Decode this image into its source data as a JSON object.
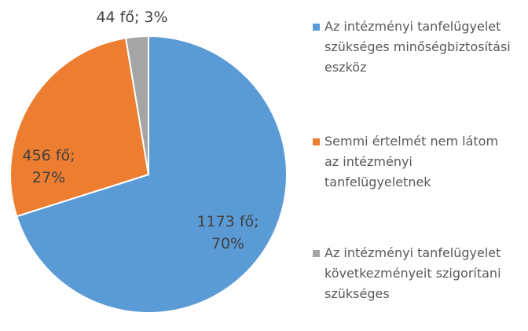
{
  "chart_data": {
    "type": "pie",
    "categories": [
      "Az intézményi tanfelügyelet szükséges minőségbiztosítási eszköz",
      "Semmi értelmét nem látom az intézményi tanfelügyeletnek",
      "Az intézményi tanfelügyelet következményeit szigorítani szükséges"
    ],
    "values": [
      1173,
      456,
      44
    ],
    "value_labels": [
      "1173 fő; 70%",
      "456 fő; 27%",
      "44 fő; 3%"
    ],
    "colors": [
      "#5b9bd5",
      "#ed7d31",
      "#a5a5a5"
    ]
  }
}
